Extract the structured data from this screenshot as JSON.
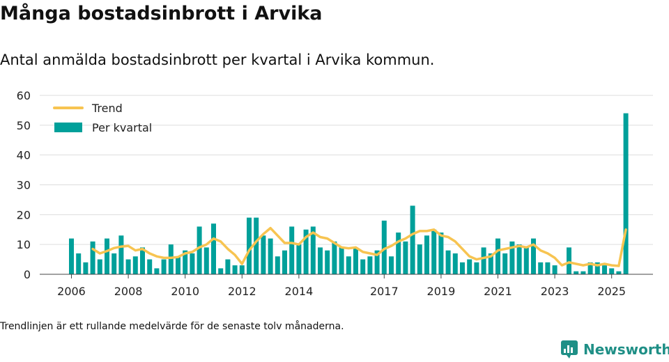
{
  "title": "Många bostadsinbrott i Arvika",
  "subtitle": "Antal anmälda bostadsinbrott per kvartal i Arvika kommun.",
  "footnote": "Trendlinjen är ett rullande medelvärde för de senaste tolv månaderna.",
  "brand": {
    "name": "Newsworthy",
    "icon": "newsworthy-logo-icon"
  },
  "colors": {
    "bar": "#00a09a",
    "trend": "#f7c451",
    "grid": "#dddddd",
    "axis": "#444444"
  },
  "chart_data": {
    "type": "bar",
    "title": "Många bostadsinbrott i Arvika",
    "xlabel": "",
    "ylabel": "",
    "ylim": [
      0,
      60
    ],
    "yticks": [
      "0",
      "10",
      "20",
      "30",
      "40",
      "50",
      "60"
    ],
    "xticks": [
      "2006",
      "2008",
      "2010",
      "2012",
      "2014",
      "2017",
      "2019",
      "2021",
      "2023",
      "2025"
    ],
    "legend": {
      "position": "top-left",
      "entries": [
        "Trend",
        "Per kvartal"
      ]
    },
    "start_period": "2006Q1",
    "series": [
      {
        "name": "Per kvartal",
        "type": "bar",
        "values": [
          12,
          7,
          4,
          11,
          5,
          12,
          7,
          13,
          5,
          6,
          9,
          5,
          2,
          5,
          10,
          6,
          8,
          7,
          16,
          9,
          17,
          2,
          5,
          3,
          3,
          19,
          19,
          13,
          12,
          6,
          8,
          16,
          10,
          15,
          16,
          9,
          8,
          11,
          9,
          6,
          9,
          5,
          6,
          8,
          18,
          6,
          14,
          11,
          23,
          10,
          13,
          15,
          14,
          8,
          7,
          4,
          5,
          4,
          9,
          7,
          12,
          7,
          11,
          10,
          9,
          12,
          4,
          4,
          3,
          0,
          9,
          1,
          1,
          4,
          4,
          3,
          2,
          1,
          54
        ]
      },
      {
        "name": "Trend",
        "type": "line",
        "values": [
          null,
          null,
          null,
          8.5,
          7,
          7.8,
          8.8,
          9.3,
          9.5,
          8,
          8.5,
          7,
          6,
          5.5,
          5.5,
          5.8,
          7,
          7.5,
          9,
          10,
          12,
          11,
          8.5,
          6.5,
          3.5,
          8,
          11,
          13.5,
          15.5,
          13,
          10.5,
          10.5,
          10,
          12.5,
          14,
          12.5,
          12,
          10.5,
          9,
          8.7,
          9,
          7.5,
          7,
          6.5,
          8.5,
          9.5,
          11,
          12,
          13.5,
          14.5,
          14.5,
          15,
          13,
          12.5,
          11,
          8.5,
          6,
          5,
          5.5,
          6,
          8,
          8.5,
          9,
          9.5,
          9,
          10,
          8,
          7,
          5.5,
          3,
          4,
          3.5,
          3,
          3.5,
          3,
          3.5,
          3,
          2.8,
          15
        ]
      }
    ]
  }
}
